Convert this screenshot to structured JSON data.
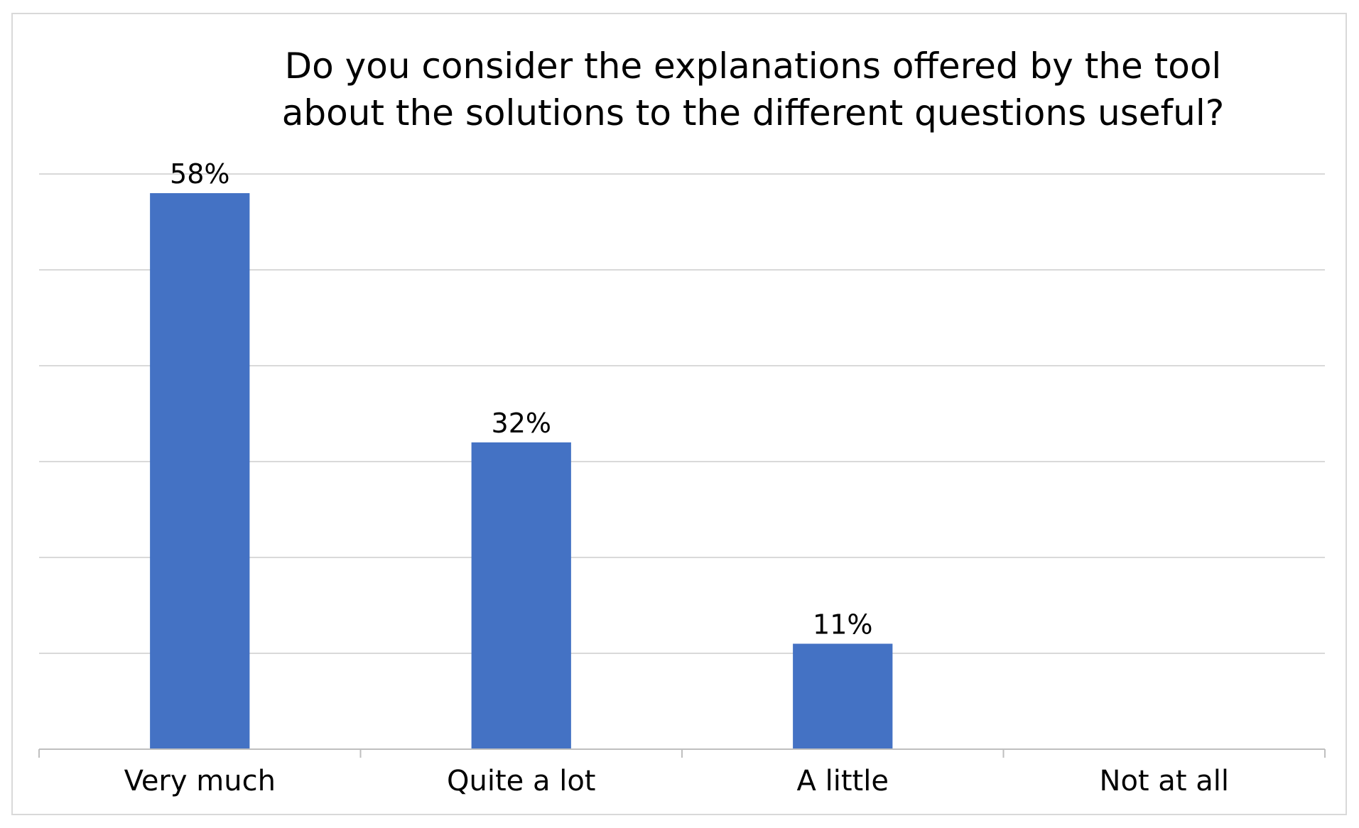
{
  "chart_data": {
    "type": "bar",
    "title": "Do you consider the explanations offered by the tool about the solutions to the different questions useful?",
    "title_lines": [
      "Do you consider the explanations offered by the tool",
      "about the solutions to the different questions useful?"
    ],
    "categories": [
      "Very much",
      "Quite a lot",
      "A little",
      "Not at all"
    ],
    "values": [
      58,
      32,
      11,
      0
    ],
    "data_labels": [
      "58%",
      "32%",
      "11%",
      ""
    ],
    "value_unit": "%",
    "ylim": [
      0,
      60
    ],
    "gridline_step": 10,
    "grid": true,
    "legend": "none",
    "bar_color": "#4472c4",
    "gridline_color": "#d9d9d9",
    "axis_color": "#bfbfbf"
  }
}
